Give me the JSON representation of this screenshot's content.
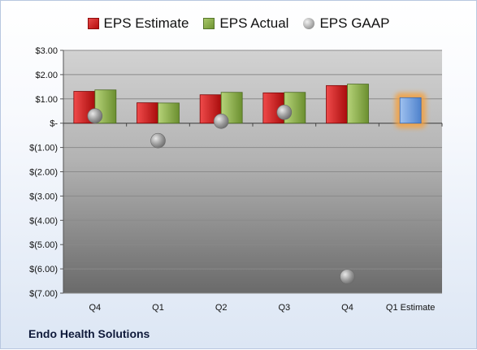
{
  "company": "Endo Health Solutions",
  "chart_data": {
    "type": "bar",
    "categories": [
      "Q4",
      "Q1",
      "Q2",
      "Q3",
      "Q4",
      "Q1 Estimate"
    ],
    "series": [
      {
        "name": "EPS Estimate",
        "values": [
          1.31,
          0.84,
          1.17,
          1.25,
          1.55,
          null
        ],
        "color": "#c81e1e"
      },
      {
        "name": "EPS Actual",
        "values": [
          1.37,
          0.83,
          1.27,
          1.27,
          1.61,
          null
        ],
        "color": "#8fb049"
      },
      {
        "name": "EPS GAAP",
        "type": "scatter",
        "values": [
          0.3,
          -0.72,
          0.08,
          0.45,
          -6.32,
          null
        ],
        "color": "#9a9a9a"
      }
    ],
    "estimate": {
      "category": "Q1 Estimate",
      "value": 1.05,
      "color": "#6f9fe0",
      "glow": "#f4a13f"
    },
    "ylim": [
      -7,
      3
    ],
    "yticks": [
      3,
      2,
      1,
      0,
      -1,
      -2,
      -3,
      -4,
      -5,
      -6,
      -7
    ],
    "ytick_labels": [
      "$3.00",
      "$2.00",
      "$1.00",
      "$-",
      "$(1.00)",
      "$(2.00)",
      "$(3.00)",
      "$(4.00)",
      "$(5.00)",
      "$(6.00)",
      "$(7.00)"
    ],
    "legend_position": "top",
    "grid": true
  }
}
